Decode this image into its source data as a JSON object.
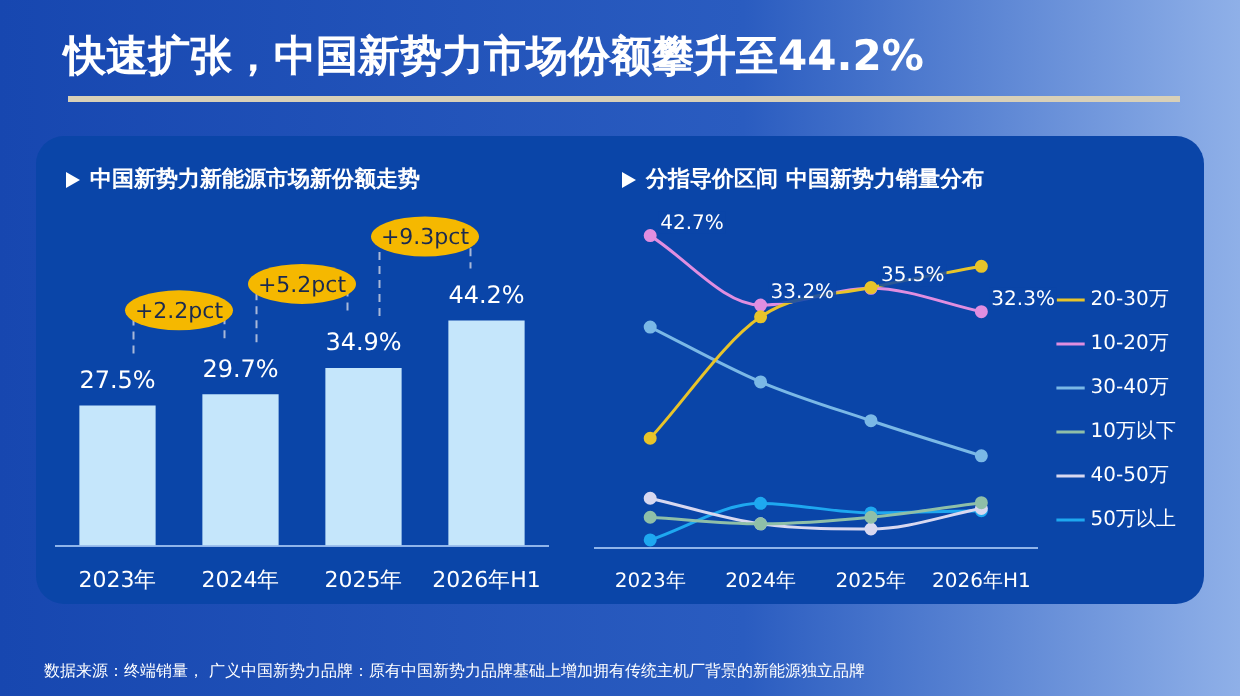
{
  "chart_data": [
    {
      "type": "bar",
      "title": "快速扩张，中国新势力市场份额攀升至44.2%",
      "subtitle": "中国新势力新能源市场新份额走势",
      "categories": [
        "2023年",
        "2024年",
        "2025年",
        "2026年H1"
      ],
      "values": [
        27.5,
        29.7,
        34.9,
        44.2
      ],
      "value_labels": [
        "27.5%",
        "29.7%",
        "34.9%",
        "44.2%"
      ],
      "color": "#c5e6fb",
      "annotations": [
        "+2.2pct",
        "+5.2pct",
        "+9.3pct"
      ],
      "tick_labels": "x",
      "legend": false
    },
    {
      "type": "line",
      "title": "分指导价区间 中国新势力销量分布",
      "categories": [
        "2023年",
        "2024年",
        "2025年",
        "2026年H1"
      ],
      "legend": "right",
      "marker": "circle",
      "tick_labels": "x",
      "annotations": [
        "数据来源：终端销量， 广义中国新势力品牌：原有中国新势力品牌基础上增加拥有传统主机厂背景的新能源独立品牌"
      ],
      "series": [
        {
          "name": "20-30万",
          "color": "#e8c42a",
          "values": [
            15.0,
            31.6,
            35.6,
            38.5
          ]
        },
        {
          "name": "10-20万",
          "color": "#e08ee0",
          "values": [
            42.7,
            33.2,
            35.5,
            32.3
          ],
          "value_labels": [
            "42.7%",
            "33.2%",
            "35.5%",
            "32.3%"
          ]
        },
        {
          "name": "30-40万",
          "color": "#7ab8e6",
          "values": [
            30.2,
            22.7,
            17.4,
            12.6
          ]
        },
        {
          "name": "10万以下",
          "color": "#8fbfa8",
          "values": [
            4.2,
            3.3,
            4.2,
            6.2
          ]
        },
        {
          "name": "40-50万",
          "color": "#d8d8f0",
          "values": [
            6.8,
            3.3,
            2.6,
            5.4
          ]
        },
        {
          "name": "50万以上",
          "color": "#1ea8f0",
          "values": [
            1.1,
            6.1,
            4.8,
            5.1
          ]
        }
      ]
    }
  ]
}
